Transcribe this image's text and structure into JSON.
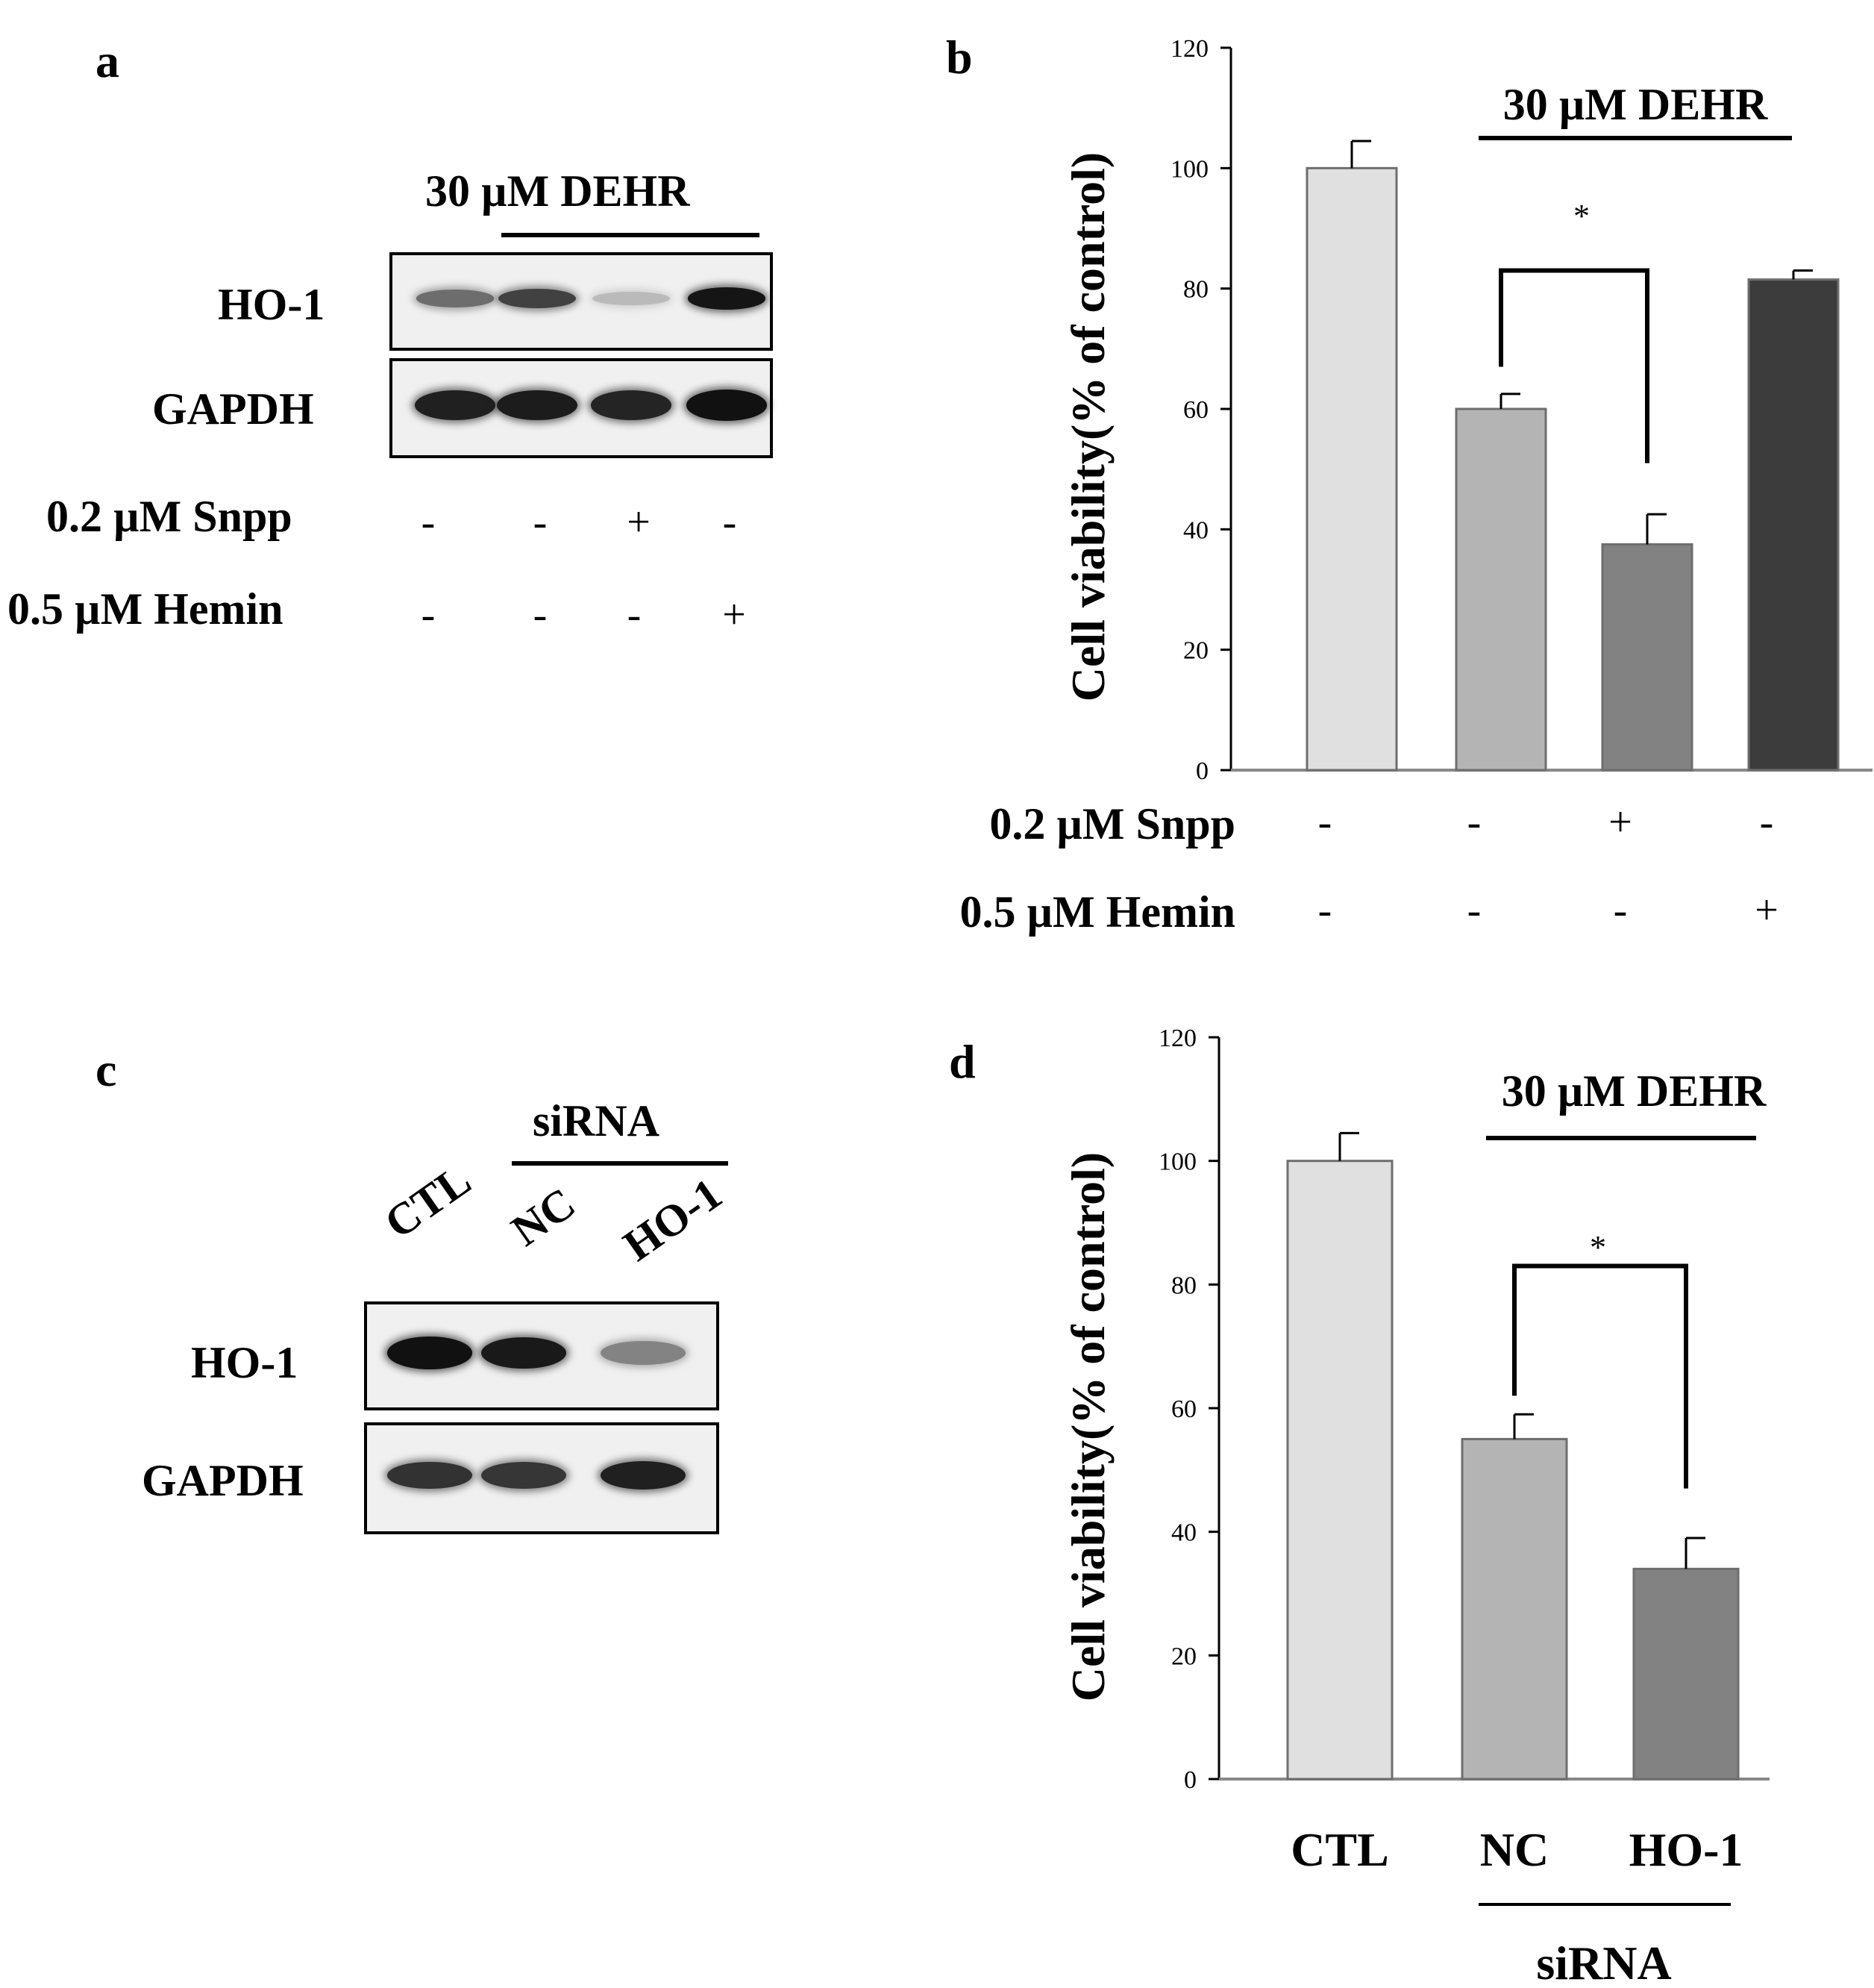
{
  "panel_a": {
    "letter": "a",
    "treatment": "30 µM DEHR",
    "rows": [
      "HO-1",
      "GAPDH"
    ],
    "conditions": [
      {
        "label": "0.2 µM Snpp",
        "values": [
          "-",
          "-",
          "+",
          "-"
        ]
      },
      {
        "label": "0.5 µM Hemin",
        "values": [
          "-",
          "-",
          "-",
          "+"
        ]
      }
    ],
    "band_intensity": {
      "HO-1": [
        0.55,
        0.75,
        0.2,
        0.95
      ],
      "GAPDH": [
        0.9,
        0.92,
        0.88,
        0.97
      ]
    }
  },
  "panel_c": {
    "letter": "c",
    "group": "siRNA",
    "lanes": [
      "CTL",
      "NC",
      "HO-1"
    ],
    "rows": [
      "HO-1",
      "GAPDH"
    ],
    "band_intensity": {
      "HO-1": [
        0.97,
        0.93,
        0.45
      ],
      "GAPDH": [
        0.82,
        0.8,
        0.9
      ]
    }
  },
  "chart_data": [
    {
      "panel": "b",
      "type": "bar",
      "ylabel": "Cell viability(% of control)",
      "ylim": [
        0,
        120
      ],
      "yticks": [
        0,
        20,
        40,
        60,
        80,
        100,
        120
      ],
      "annotation": "30 µM DEHR",
      "significance": "*",
      "values": [
        100,
        60,
        37.5,
        81.5
      ],
      "errors": [
        4.5,
        2.5,
        5,
        1.5
      ],
      "colors": [
        "#e0e0e0",
        "#b4b4b4",
        "#828282",
        "#3c3c3c"
      ],
      "conditions": [
        {
          "label": "0.2 µM Snpp",
          "values": [
            "-",
            "-",
            "+",
            "-"
          ]
        },
        {
          "label": "0.5 µM Hemin",
          "values": [
            "-",
            "-",
            "-",
            "+"
          ]
        }
      ]
    },
    {
      "panel": "d",
      "type": "bar",
      "ylabel": "Cell viability(% of control)",
      "ylim": [
        0,
        120
      ],
      "yticks": [
        0,
        20,
        40,
        60,
        80,
        100,
        120
      ],
      "annotation": "30 µM DEHR",
      "significance": "*",
      "categories": [
        "CTL",
        "NC",
        "HO-1"
      ],
      "group_label": "siRNA",
      "values": [
        100,
        55,
        34
      ],
      "errors": [
        4.5,
        4,
        5
      ],
      "colors": [
        "#e0e0e0",
        "#b4b4b4",
        "#828282"
      ]
    }
  ]
}
